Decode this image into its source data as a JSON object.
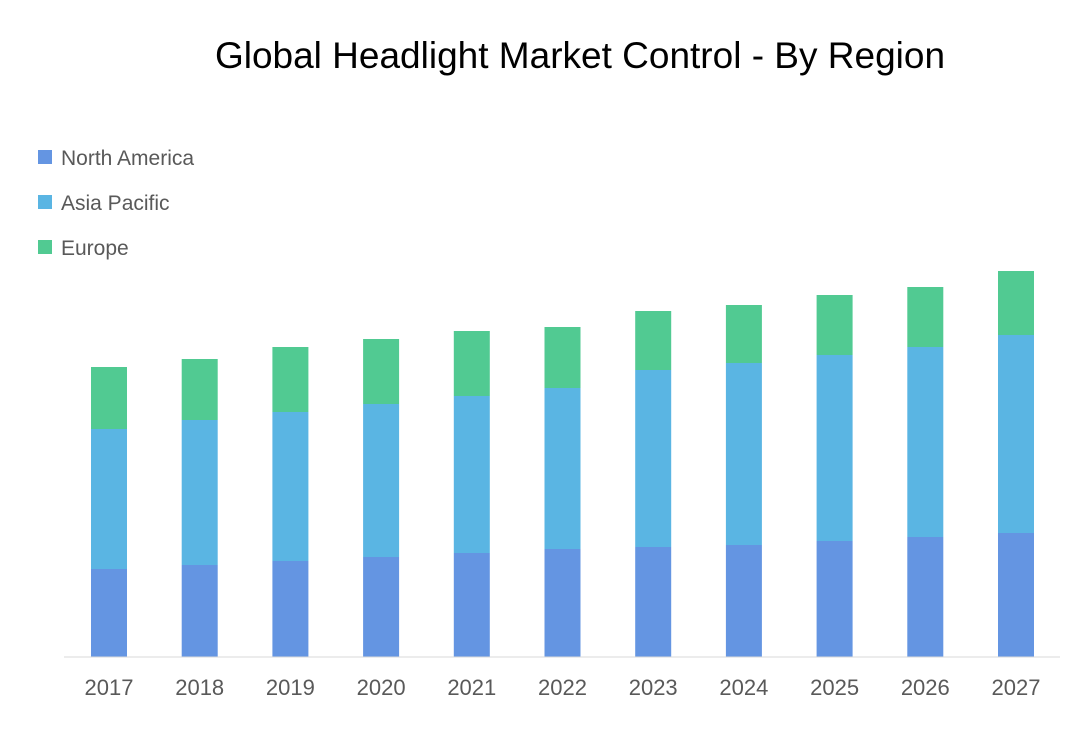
{
  "chart_data": {
    "type": "bar",
    "stacked": true,
    "title": "Global Headlight Market Control -  By Region",
    "xlabel": "",
    "ylabel": "",
    "categories": [
      "2017",
      "2018",
      "2019",
      "2020",
      "2021",
      "2022",
      "2023",
      "2024",
      "2025",
      "2026",
      "2027"
    ],
    "series": [
      {
        "name": "North America",
        "color": "#6495E2",
        "values": [
          88,
          92,
          96,
          100,
          104,
          108,
          110,
          112,
          116,
          120,
          124
        ]
      },
      {
        "name": "Asia Pacific",
        "color": "#5AB5E3",
        "values": [
          140,
          145,
          149,
          153,
          157,
          161,
          177,
          182,
          186,
          190,
          198
        ]
      },
      {
        "name": "Europe",
        "color": "#51CA92",
        "values": [
          62,
          61,
          65,
          65,
          65,
          61,
          59,
          58,
          60,
          60,
          64
        ]
      }
    ],
    "y_axis_visible": false,
    "ylim": [
      0,
      400
    ],
    "grid": false,
    "legend_position": "top-left"
  }
}
